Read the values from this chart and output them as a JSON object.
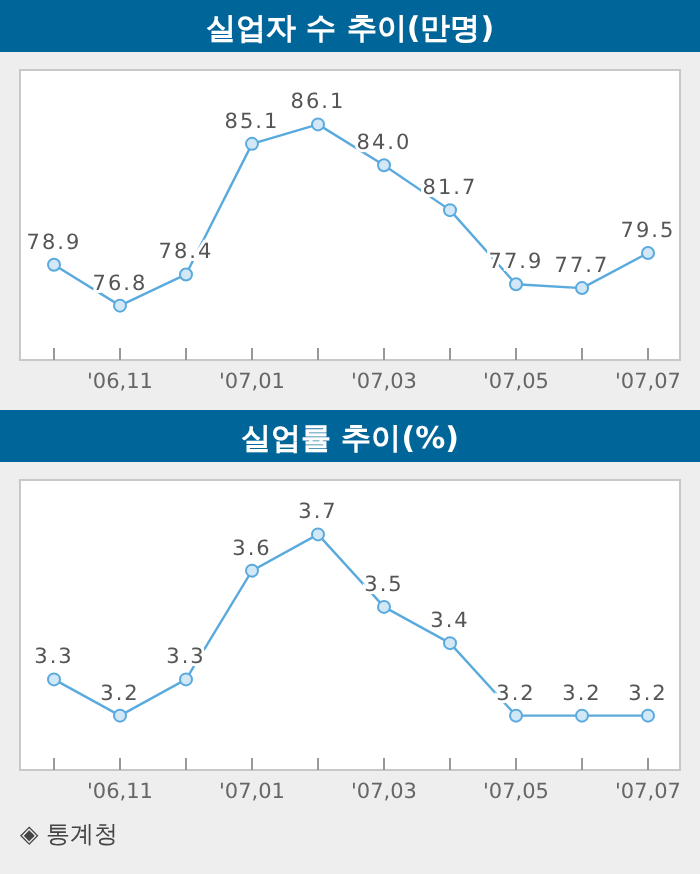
{
  "chart_data": [
    {
      "type": "line",
      "title": "실업자 수 추이(만명)",
      "categories": [
        null,
        "'06,11",
        null,
        "'07,01",
        null,
        "'07,03",
        null,
        "'07,05",
        null,
        "'07,07"
      ],
      "series": [
        {
          "color": "#5aaade",
          "values": [
            78.9,
            76.8,
            78.4,
            85.1,
            86.1,
            84.0,
            81.7,
            77.9,
            77.7,
            79.5
          ],
          "value_labels": [
            "78.9",
            "76.8",
            "78.4",
            "85.1",
            "86.1",
            "84.0",
            "81.7",
            "77.9",
            "77.7",
            "79.5"
          ]
        }
      ],
      "marker": "circle"
    },
    {
      "type": "line",
      "title": "실업률 추이(%)",
      "categories": [
        null,
        "'06,11",
        null,
        "'07,01",
        null,
        "'07,03",
        null,
        "'07,05",
        null,
        "'07,07"
      ],
      "series": [
        {
          "color": "#5aaade",
          "values": [
            3.3,
            3.2,
            3.3,
            3.6,
            3.7,
            3.5,
            3.4,
            3.2,
            3.2,
            3.2
          ],
          "value_labels": [
            "3.3",
            "3.2",
            "3.3",
            "3.6",
            "3.7",
            "3.5",
            "3.4",
            "3.2",
            "3.2",
            "3.2"
          ]
        }
      ],
      "marker": "circle",
      "annotations": [
        "◈ 통계청"
      ]
    }
  ]
}
